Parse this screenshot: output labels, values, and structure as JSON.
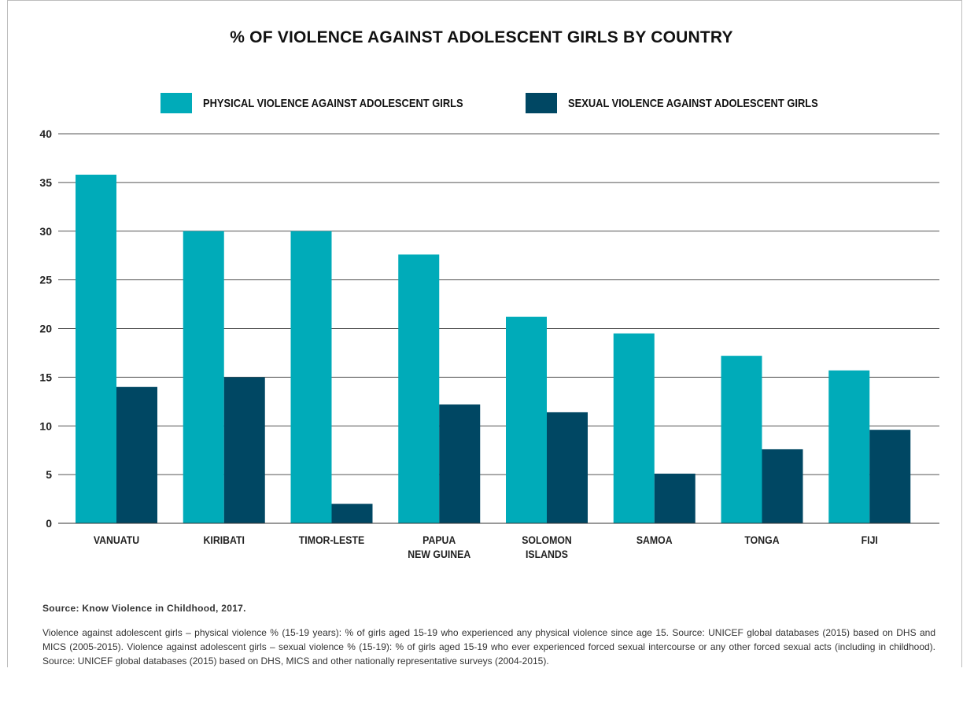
{
  "chart_data": {
    "type": "bar",
    "title": "% OF VIOLENCE AGAINST ADOLESCENT GIRLS BY COUNTRY",
    "categories": [
      [
        "VANUATU"
      ],
      [
        "KIRIBATI"
      ],
      [
        "TIMOR-LESTE"
      ],
      [
        "PAPUA",
        "NEW GUINEA"
      ],
      [
        "SOLOMON",
        "ISLANDS"
      ],
      [
        "SAMOA"
      ],
      [
        "TONGA"
      ],
      [
        "FIJI"
      ]
    ],
    "series": [
      {
        "name": "PHYSICAL VIOLENCE AGAINST ADOLESCENT GIRLS",
        "color": "#00abb9",
        "values": [
          35.8,
          30,
          30,
          27.6,
          21.2,
          19.5,
          17.2,
          15.7
        ]
      },
      {
        "name": "SEXUAL VIOLENCE AGAINST ADOLESCENT GIRLS",
        "color": "#004763",
        "values": [
          14,
          15,
          2,
          12.2,
          11.4,
          5.1,
          7.6,
          9.6
        ]
      }
    ],
    "ylim": [
      0,
      40
    ],
    "yticks": [
      0,
      5,
      10,
      15,
      20,
      25,
      30,
      35,
      40
    ],
    "grid": true,
    "legend": "top"
  },
  "source": "Source: Know Violence in Childhood, 2017.",
  "notes": "Violence against adolescent girls – physical violence % (15-19 years): % of girls aged 15-19 who experienced any physical violence since age 15. Source: UNICEF global databases (2015) based on DHS and MICS (2005-2015). Violence against adolescent girls – sexual violence % (15-19): % of girls aged 15-19 who ever experienced forced sexual intercourse or any other forced sexual acts (including in childhood). Source: UNICEF global databases (2015) based on DHS, MICS and other nationally representative surveys (2004-2015)."
}
